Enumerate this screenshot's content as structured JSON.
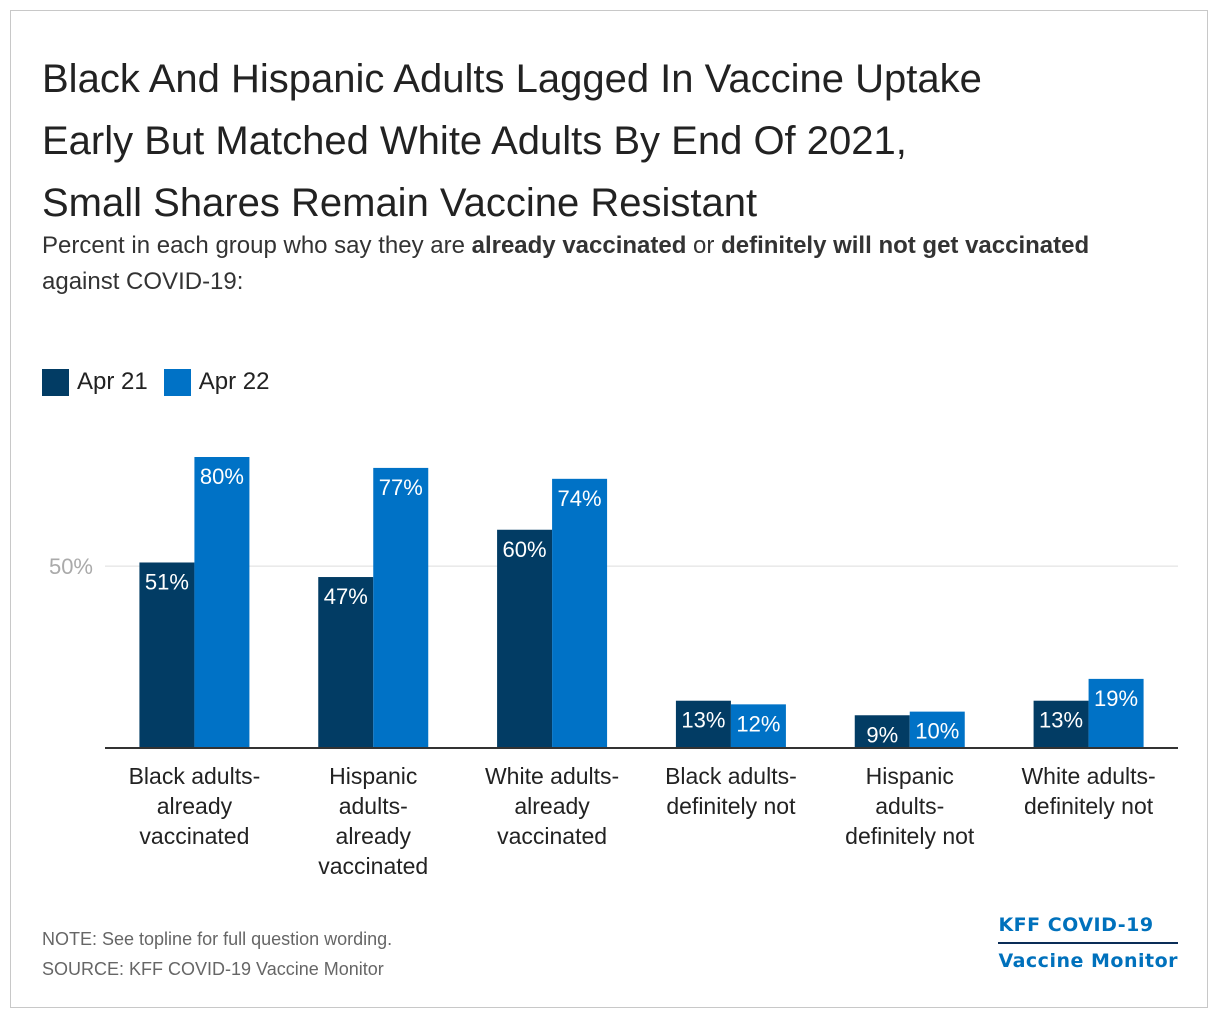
{
  "header": {
    "title_lines": [
      "Black And Hispanic Adults Lagged In Vaccine Uptake",
      "Early But Matched White Adults By End Of 2021,",
      "Small Shares Remain Vaccine Resistant"
    ],
    "subtitle_pre": "Percent in each group who say they are ",
    "subtitle_bold1": "already vaccinated",
    "subtitle_mid": " or ",
    "subtitle_bold2": "definitely will not get vaccinated",
    "subtitle_post": " against COVID-19:"
  },
  "colors": {
    "apr21": "#023c64",
    "apr22": "#0072c6",
    "grid": "#dddddd",
    "axis": "#333333"
  },
  "chart_data": {
    "type": "bar",
    "title": "Black And Hispanic Adults Lagged In Vaccine Uptake Early But Matched White Adults By End Of 2021, Small Shares Remain Vaccine Resistant",
    "categories": [
      [
        "Black adults-",
        "already",
        "vaccinated"
      ],
      [
        "Hispanic",
        "adults-",
        "already",
        "vaccinated"
      ],
      [
        "White adults-",
        "already",
        "vaccinated"
      ],
      [
        "Black adults-",
        "definitely not"
      ],
      [
        "Hispanic",
        "adults-",
        "definitely not"
      ],
      [
        "White adults-",
        "definitely not"
      ]
    ],
    "series": [
      {
        "name": "Apr 21",
        "values": [
          51,
          47,
          60,
          13,
          9,
          13
        ],
        "labels": [
          "51%",
          "47%",
          "60%",
          "13%",
          "9%",
          "13%"
        ]
      },
      {
        "name": "Apr 22",
        "values": [
          80,
          77,
          74,
          12,
          10,
          19
        ],
        "labels": [
          "80%",
          "77%",
          "74%",
          "12%",
          "10%",
          "19%"
        ]
      }
    ],
    "ylim": [
      0,
      80
    ],
    "yticks": [
      50
    ],
    "ytick_labels": [
      "50%"
    ],
    "grid": true,
    "legend": "top-left",
    "xlabel": "",
    "ylabel": ""
  },
  "footer": {
    "note": "NOTE: See topline for full question wording.",
    "source": "SOURCE: KFF COVID-19 Vaccine Monitor",
    "brand_line1": "KFF COVID-19",
    "brand_line2": "Vaccine Monitor"
  }
}
